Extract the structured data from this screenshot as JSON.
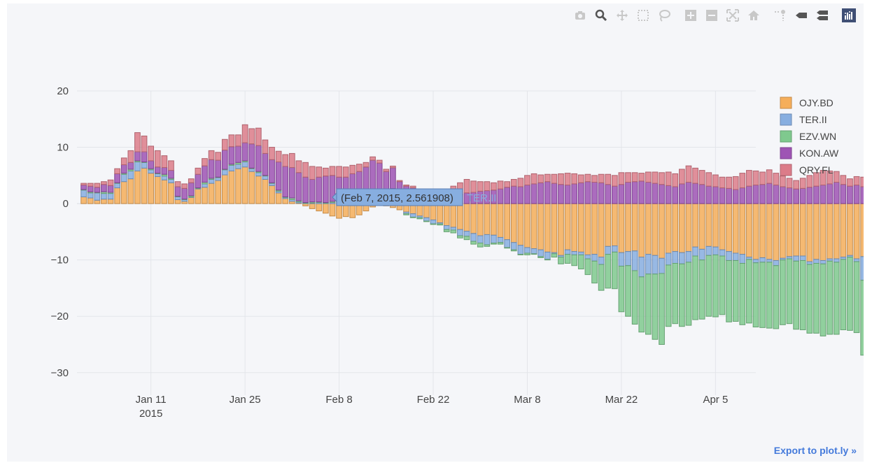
{
  "modebar": [
    {
      "name": "camera-icon",
      "title": "Download plot as a png"
    },
    {
      "name": "zoom-icon",
      "title": "Zoom"
    },
    {
      "name": "pan-icon",
      "title": "Pan"
    },
    {
      "name": "box-select-icon",
      "title": "Box Select"
    },
    {
      "name": "lasso-select-icon",
      "title": "Lasso Select"
    },
    {
      "name": "zoom-in-icon",
      "title": "Zoom in"
    },
    {
      "name": "zoom-out-icon",
      "title": "Zoom out"
    },
    {
      "name": "autoscale-icon",
      "title": "Autoscale"
    },
    {
      "name": "reset-axes-icon",
      "title": "Reset axes"
    },
    {
      "name": "spike-lines-icon",
      "title": "Toggle Spike Lines"
    },
    {
      "name": "hover-closest-icon",
      "title": "Show closest data on hover"
    },
    {
      "name": "hover-compare-icon",
      "title": "Compare data on hover"
    },
    {
      "name": "plotly-logo-icon",
      "title": "Produced with Plotly"
    }
  ],
  "export_label": "Export to plot.ly »",
  "tooltip": {
    "text": "(Feb 7, 2015, 2.561908)",
    "series": "TER.II",
    "x": "2015-02-07",
    "y": 2.561908
  },
  "colors": {
    "background": "#f5f6f9",
    "grid": "#e3e5ea",
    "text": "#444444"
  },
  "chart_data": {
    "type": "bar",
    "barmode": "relative",
    "x_start": "2015-01-01",
    "x_end": "2015-04-10",
    "xaxis": {
      "type": "date",
      "tickvals": [
        "2015-01-11",
        "2015-01-25",
        "2015-02-08",
        "2015-02-22",
        "2015-03-08",
        "2015-03-22",
        "2015-04-05"
      ],
      "ticktext": [
        "Jan 11",
        "Jan 25",
        "Feb 8",
        "Feb 22",
        "Mar 8",
        "Mar 22",
        "Apr 5"
      ],
      "year_label": "2015",
      "range": [
        "2014-12-31",
        "2015-04-11"
      ]
    },
    "yaxis": {
      "tickvals": [
        20,
        10,
        0,
        -10,
        -20,
        -30
      ],
      "ticktext": [
        "20",
        "10",
        "0",
        "−10",
        "−20",
        "−30"
      ],
      "range": [
        -34,
        20
      ]
    },
    "grid": true,
    "legend_position": "top-right",
    "series": [
      {
        "name": "OJY.BD",
        "color": "#f5ae5b",
        "values": [
          1.2,
          1.0,
          0.6,
          0.8,
          0.8,
          2.8,
          3.9,
          4.4,
          5.8,
          6.3,
          5.4,
          4.8,
          4.2,
          3.7,
          0.7,
          0.4,
          1.1,
          2.6,
          2.9,
          3.6,
          4.1,
          5.1,
          5.8,
          6.2,
          6.5,
          5.7,
          4.9,
          4.3,
          3.2,
          1.9,
          0.9,
          0.4,
          0.1,
          -0.4,
          -0.9,
          -1.3,
          -1.7,
          -2.2,
          -2.6,
          -2.3,
          -2.5,
          -2.0,
          -1.3,
          -0.6,
          0.1,
          -0.4,
          -0.7,
          -1.1,
          -1.5,
          -1.8,
          -2.2,
          -2.5,
          -2.9,
          -3.4,
          -3.9,
          -4.2,
          -4.6,
          -4.9,
          -5.3,
          -5.7,
          -5.5,
          -5.6,
          -6.0,
          -6.4,
          -6.9,
          -7.4,
          -7.8,
          -8.0,
          -8.2,
          -8.6,
          -8.7,
          -9.2,
          -8.2,
          -8.5,
          -8.6,
          -9.1,
          -9.0,
          -9.5,
          -7.6,
          -7.5,
          -8.7,
          -8.5,
          -8.4,
          -9.5,
          -9.0,
          -9.2,
          -9.7,
          -8.8,
          -8.5,
          -8.7,
          -8.5,
          -7.7,
          -8.1,
          -7.6,
          -7.7,
          -8.2,
          -8.5,
          -8.8,
          -9.0,
          -9.5,
          -9.9,
          -9.6,
          -9.9,
          -10.1,
          -9.7,
          -9.4,
          -9.3,
          -9.3,
          -10.3,
          -9.9,
          -10.1,
          -9.8,
          -9.8,
          -9.5,
          -9.2,
          -9.8,
          -9.4
        ]
      },
      {
        "name": "TER.II",
        "color": "#87aee0",
        "values": [
          1.2,
          0.9,
          1.3,
          1.0,
          1.0,
          0.8,
          1.3,
          1.4,
          1.6,
          1.0,
          0.6,
          0.5,
          0.7,
          0.6,
          0.5,
          0.3,
          0.1,
          0.1,
          0.6,
          0.7,
          0.5,
          0.9,
          1.0,
          0.8,
          0.9,
          0.5,
          0.6,
          0.6,
          0.4,
          0.3,
          0.2,
          0.3,
          0.2,
          0.1,
          0.1,
          0.2,
          0.1,
          0.2,
          0.3,
          0.2,
          0.4,
          0.2,
          0.1,
          0.2,
          0.3,
          0.1,
          2.561908,
          0.1,
          -0.3,
          -0.6,
          -0.3,
          -0.6,
          -0.7,
          -0.2,
          -0.7,
          -0.5,
          -1.1,
          -0.9,
          -1.4,
          -1.3,
          -1.8,
          -1.4,
          -0.9,
          -1.4,
          -1.3,
          -1.6,
          -1.0,
          -0.9,
          -1.2,
          -1.3,
          -0.2,
          -0.3,
          -0.8,
          -0.6,
          -0.5,
          -0.7,
          -1.2,
          -1.3,
          -1.4,
          -1.1,
          -2.4,
          -2.5,
          -3.5,
          -3.5,
          -3.5,
          -3.3,
          -2.7,
          -2.1,
          -2.1,
          -2.0,
          -1.9,
          -1.6,
          -1.9,
          -1.6,
          -1.4,
          -1.1,
          -1.6,
          -1.3,
          -1.6,
          -0.4,
          -0.6,
          -0.8,
          -0.5,
          -0.9,
          -0.3,
          -0.4,
          -0.9,
          -0.8,
          -0.5,
          -0.7,
          -0.6,
          -0.4,
          -0.6,
          -0.4,
          -0.3,
          -0.5,
          -4.2
        ]
      },
      {
        "name": "EZV.WN",
        "color": "#7fc98e",
        "values": [
          0.1,
          0.2,
          0.1,
          0.3,
          0.2,
          0.1,
          0.2,
          0.3,
          0.2,
          0.1,
          0.2,
          0.1,
          0.3,
          0.2,
          0.1,
          0.1,
          0.2,
          0.1,
          0.3,
          0.2,
          0.1,
          0.1,
          0.2,
          0.3,
          0.2,
          0.1,
          0.2,
          0.1,
          0.1,
          0.2,
          0.1,
          0.3,
          0.2,
          0.1,
          0.2,
          0.1,
          0.1,
          0.2,
          0.1,
          0.3,
          0.2,
          0.1,
          0.2,
          0.1,
          0.1,
          0.2,
          0.1,
          0.3,
          -0.2,
          -0.1,
          -0.2,
          -0.1,
          -0.1,
          -0.2,
          -0.4,
          -0.5,
          -0.4,
          -0.6,
          -0.5,
          -0.7,
          -0.3,
          -0.2,
          -0.3,
          -0.1,
          -0.2,
          -0.1,
          -0.3,
          -0.1,
          -0.2,
          -0.1,
          -0.6,
          -1.2,
          -1.6,
          -1.9,
          -2.5,
          -2.8,
          -3.9,
          -4.6,
          -6.0,
          -6.5,
          -8.1,
          -9.0,
          -9.5,
          -9.8,
          -10.7,
          -11.6,
          -12.6,
          -10.9,
          -10.7,
          -11.1,
          -11.2,
          -11.3,
          -10.5,
          -10.8,
          -11.0,
          -10.4,
          -10.9,
          -10.8,
          -10.9,
          -11.3,
          -11.4,
          -11.6,
          -11.7,
          -11.2,
          -11.5,
          -11.5,
          -12.1,
          -12.3,
          -12.2,
          -12.4,
          -12.8,
          -13.0,
          -12.8,
          -12.5,
          -13.0,
          -12.6,
          -13.3,
          -12.9
        ]
      },
      {
        "name": "KON.AW",
        "color": "#9e54b4",
        "values": [
          0.8,
          1.0,
          0.9,
          1.3,
          1.2,
          1.6,
          1.5,
          1.2,
          1.6,
          1.8,
          1.4,
          1.1,
          1.2,
          1.4,
          1.7,
          1.9,
          2.3,
          2.4,
          2.9,
          3.3,
          3.0,
          3.4,
          3.1,
          2.9,
          3.2,
          4.3,
          4.6,
          3.9,
          4.1,
          5.0,
          5.4,
          5.4,
          5.0,
          4.5,
          4.0,
          4.4,
          4.7,
          4.6,
          4.3,
          4.2,
          4.7,
          5.4,
          6.2,
          7.4,
          6.7,
          5.4,
          3.7,
          3.5,
          3.1,
          2.8,
          2.1,
          1.8,
          1.6,
          1.3,
          1.2,
          1.3,
          1.6,
          1.9,
          2.0,
          2.2,
          2.3,
          2.4,
          2.6,
          2.9,
          3.1,
          3.0,
          3.3,
          3.5,
          3.7,
          3.9,
          3.6,
          3.4,
          3.3,
          3.5,
          3.7,
          3.9,
          3.8,
          3.7,
          3.4,
          3.1,
          3.4,
          3.8,
          3.9,
          4.0,
          3.8,
          3.6,
          3.4,
          3.2,
          3.0,
          3.5,
          3.8,
          3.6,
          3.4,
          3.1,
          3.0,
          2.8,
          2.7,
          2.5,
          2.8,
          3.1,
          3.3,
          3.4,
          3.6,
          3.3,
          3.0,
          2.8,
          2.6,
          2.7,
          2.9,
          3.1,
          3.3,
          3.5,
          3.8,
          3.4,
          3.1,
          3.3,
          3.0
        ]
      },
      {
        "name": "QRY.FL",
        "color": "#dc7c89",
        "values": [
          0.3,
          0.5,
          0.7,
          0.5,
          1.0,
          0.9,
          1.2,
          2.1,
          3.4,
          2.8,
          2.6,
          2.9,
          2.1,
          1.7,
          0.9,
          0.8,
          0.7,
          1.1,
          1.3,
          1.6,
          1.4,
          1.9,
          2.1,
          2.0,
          3.2,
          2.7,
          3.1,
          2.4,
          2.2,
          1.9,
          2.1,
          2.5,
          2.1,
          2.6,
          2.3,
          1.8,
          1.4,
          1.6,
          1.9,
          1.8,
          1.5,
          1.3,
          0.8,
          0.6,
          0.5,
          0.4,
          0.3,
          0.2,
          0.2,
          0.3,
          0.5,
          0.4,
          0.6,
          1.0,
          1.4,
          1.8,
          2.1,
          2.4,
          2.0,
          1.7,
          1.6,
          1.3,
          1.4,
          1.0,
          1.2,
          1.5,
          1.7,
          1.8,
          1.4,
          1.3,
          1.6,
          1.9,
          2.1,
          1.8,
          1.4,
          1.3,
          1.2,
          1.5,
          1.8,
          1.9,
          2.1,
          1.7,
          1.6,
          1.4,
          1.8,
          2.0,
          2.1,
          2.4,
          2.3,
          2.6,
          2.9,
          2.7,
          2.5,
          2.4,
          2.1,
          1.9,
          2.0,
          2.3,
          2.6,
          2.8,
          2.5,
          2.2,
          2.4,
          2.1,
          1.9,
          1.7,
          1.5,
          1.8,
          2.1,
          2.4,
          2.6,
          2.3,
          1.9,
          1.6,
          1.3,
          1.5,
          1.7
        ]
      }
    ]
  }
}
